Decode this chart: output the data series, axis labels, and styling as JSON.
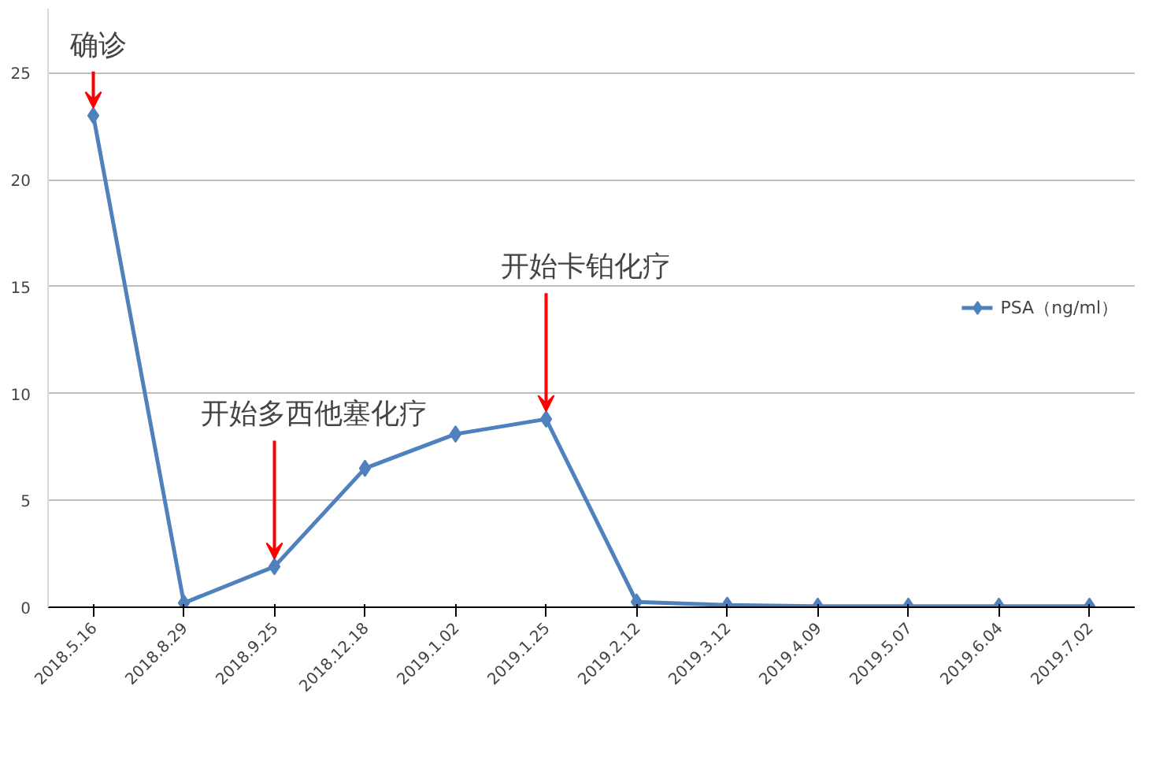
{
  "chart_data": {
    "type": "line",
    "categories": [
      "2018.5.16",
      "2018.8.29",
      "2018.9.25",
      "2018.12.18",
      "2019.1.02",
      "2019.1.25",
      "2019.2.12",
      "2019.3.12",
      "2019.4.09",
      "2019.5.07",
      "2019.6.04",
      "2019.7.02"
    ],
    "series": [
      {
        "name": "PSA（ng/ml）",
        "color": "#4f81bd",
        "values": [
          23,
          0.2,
          1.9,
          6.5,
          8.1,
          8.8,
          0.25,
          0.1,
          0.05,
          0.05,
          0.05,
          0.05
        ]
      }
    ],
    "ylim": [
      0,
      28
    ],
    "yticks": [
      0,
      5,
      10,
      15,
      20,
      25
    ],
    "grid": "y",
    "legend": "right",
    "marker": "diamond",
    "line_style": "solid",
    "annotations": [
      {
        "text": "确诊",
        "x": "2018.5.16",
        "y": 23
      },
      {
        "text": "开始多西他塞化疗",
        "x": "2018.9.25",
        "y": 1.9
      },
      {
        "text": "开始卡铂化疗",
        "x": "2019.1.25",
        "y": 8.8
      }
    ]
  }
}
